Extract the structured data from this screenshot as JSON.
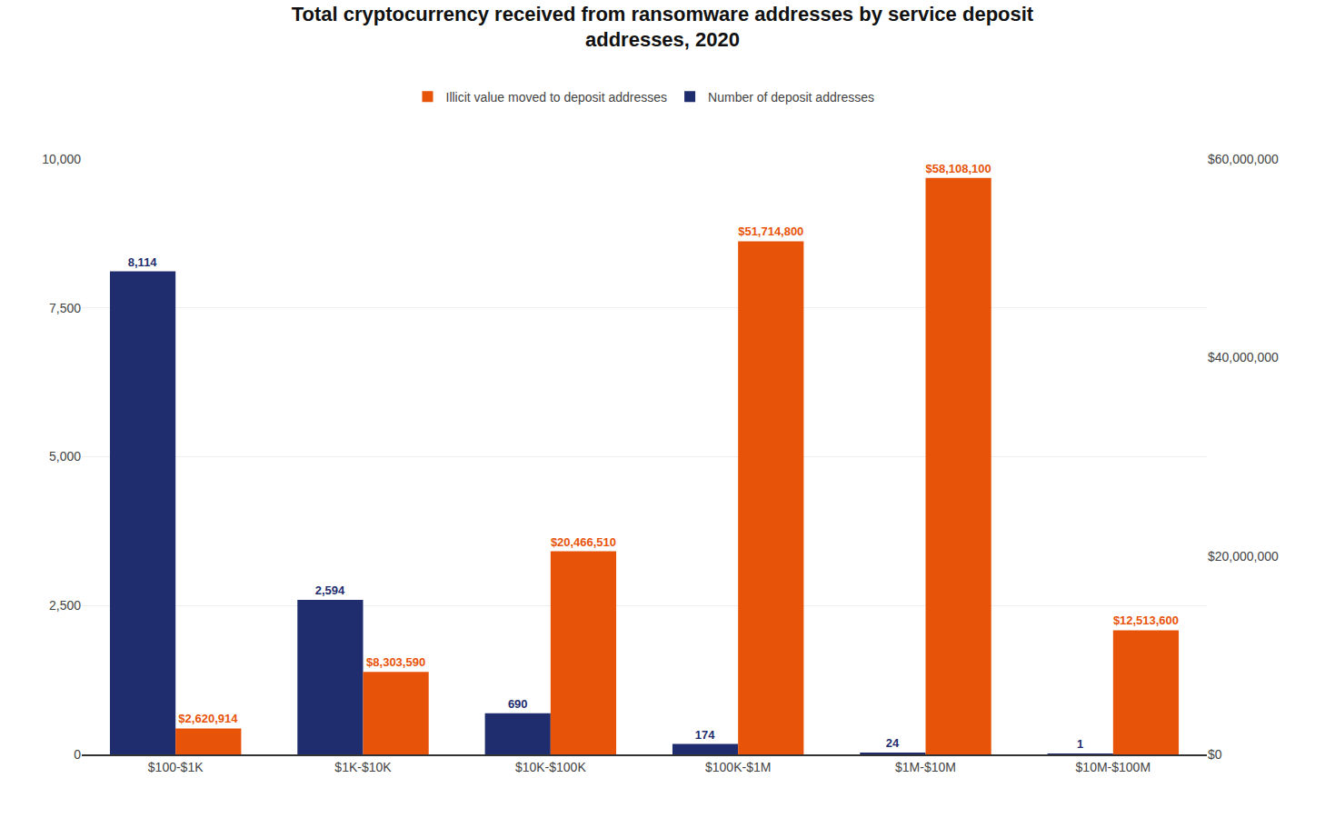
{
  "chart_data": {
    "type": "bar",
    "title": "Total cryptocurrency received from ransomware addresses by service deposit\naddresses, 2020",
    "categories": [
      "$100-$1K",
      "$1K-$10K",
      "$10K-$100K",
      "$100K-$1M",
      "$1M-$10M",
      "$10M-$100M"
    ],
    "series": [
      {
        "name": "Number of deposit addresses",
        "color": "#1f2d6e",
        "axis": "y",
        "values": [
          8114,
          2594,
          690,
          174,
          24,
          1
        ],
        "value_labels": [
          "8,114",
          "2,594",
          "690",
          "174",
          "24",
          "1"
        ]
      },
      {
        "name": "Illicit value moved to deposit addresses",
        "color": "#e8530a",
        "axis": "y2",
        "values": [
          2620914,
          8303590,
          20466510,
          51714800,
          58108100,
          12513600
        ],
        "value_labels": [
          "$2,620,914",
          "$8,303,590",
          "$20,466,510",
          "$51,714,800",
          "$58,108,100",
          "$12,513,600"
        ]
      }
    ],
    "ylim": [
      0,
      10000
    ],
    "yticks": [
      0,
      {
        "value": 2500,
        "label": "2,500"
      },
      {
        "value": 5000,
        "label": "5,000"
      },
      {
        "value": 7500,
        "label": "7,500"
      },
      {
        "value": 10000,
        "label": "10,000"
      }
    ],
    "y2lim": [
      0,
      60000000
    ],
    "y2ticks": [
      {
        "value": 0,
        "label": "$0"
      },
      {
        "value": 20000000,
        "label": "$20,000,000"
      },
      {
        "value": 40000000,
        "label": "$40,000,000"
      },
      {
        "value": 60000000,
        "label": "$60,000,000"
      }
    ],
    "grid": true,
    "data_labels": true,
    "legend": "top"
  }
}
